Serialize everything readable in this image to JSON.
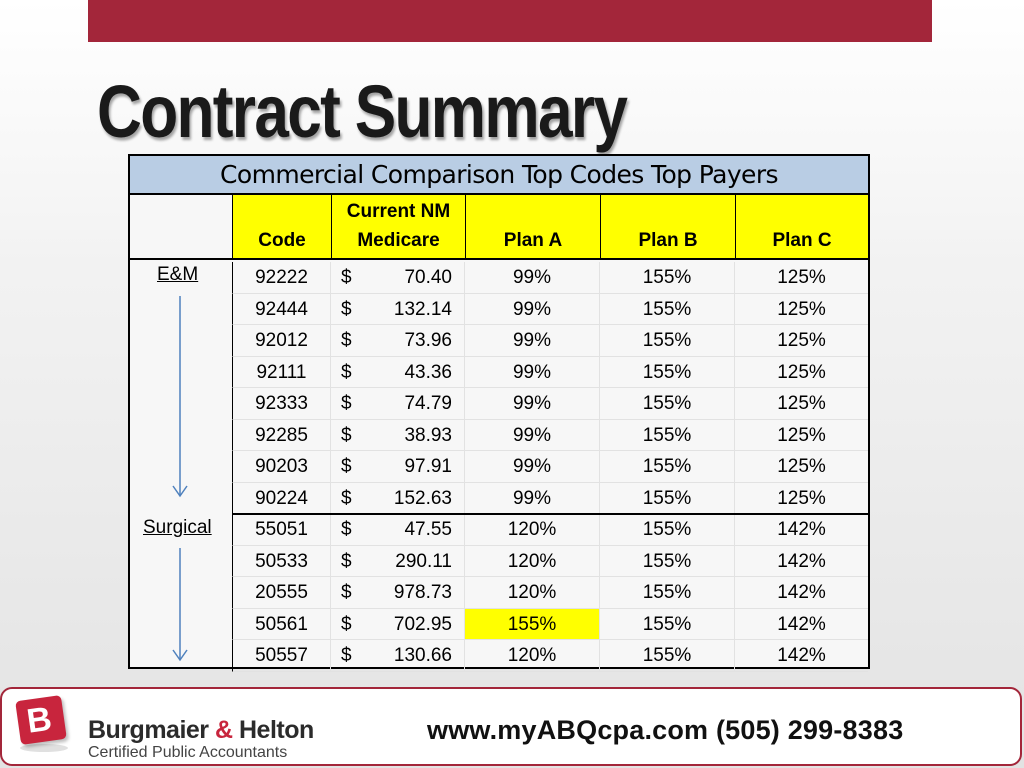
{
  "slide": {
    "title": "Contract Summary"
  },
  "table": {
    "title": "Commercial Comparison Top Codes Top Payers",
    "headers": {
      "code": "Code",
      "current_line1": "Current NM",
      "current_line2": "Medicare",
      "plan_a": "Plan A",
      "plan_b": "Plan B",
      "plan_c": "Plan C"
    },
    "groups": [
      "E&M",
      "Surgical"
    ],
    "currency": "$",
    "rows": [
      {
        "code": "92222",
        "medicare": "70.40",
        "plan_a": "99%",
        "plan_b": "155%",
        "plan_c": "125%"
      },
      {
        "code": "92444",
        "medicare": "132.14",
        "plan_a": "99%",
        "plan_b": "155%",
        "plan_c": "125%"
      },
      {
        "code": "92012",
        "medicare": "73.96",
        "plan_a": "99%",
        "plan_b": "155%",
        "plan_c": "125%"
      },
      {
        "code": "92111",
        "medicare": "43.36",
        "plan_a": "99%",
        "plan_b": "155%",
        "plan_c": "125%"
      },
      {
        "code": "92333",
        "medicare": "74.79",
        "plan_a": "99%",
        "plan_b": "155%",
        "plan_c": "125%"
      },
      {
        "code": "92285",
        "medicare": "38.93",
        "plan_a": "99%",
        "plan_b": "155%",
        "plan_c": "125%"
      },
      {
        "code": "90203",
        "medicare": "97.91",
        "plan_a": "99%",
        "plan_b": "155%",
        "plan_c": "125%"
      },
      {
        "code": "90224",
        "medicare": "152.63",
        "plan_a": "99%",
        "plan_b": "155%",
        "plan_c": "125%"
      },
      {
        "code": "55051",
        "medicare": "47.55",
        "plan_a": "120%",
        "plan_b": "155%",
        "plan_c": "142%"
      },
      {
        "code": "50533",
        "medicare": "290.11",
        "plan_a": "120%",
        "plan_b": "155%",
        "plan_c": "142%"
      },
      {
        "code": "20555",
        "medicare": "978.73",
        "plan_a": "120%",
        "plan_b": "155%",
        "plan_c": "142%"
      },
      {
        "code": "50561",
        "medicare": "702.95",
        "plan_a": "155%",
        "plan_b": "155%",
        "plan_c": "142%",
        "highlight": true
      },
      {
        "code": "50557",
        "medicare": "130.66",
        "plan_a": "120%",
        "plan_b": "155%",
        "plan_c": "142%"
      }
    ]
  },
  "footer": {
    "logo_letter": "B",
    "firm_part1": "Burgmaier ",
    "firm_amp": "&",
    "firm_part2": " Helton",
    "subtitle": "Certified Public Accountants",
    "contact": "www.myABQcpa.com  (505) 299-8383"
  },
  "colors": {
    "accent": "#a3263a",
    "header_blue": "#b9cde4",
    "highlight_yellow": "#ffff00",
    "arrow_blue": "#4f81bd"
  }
}
